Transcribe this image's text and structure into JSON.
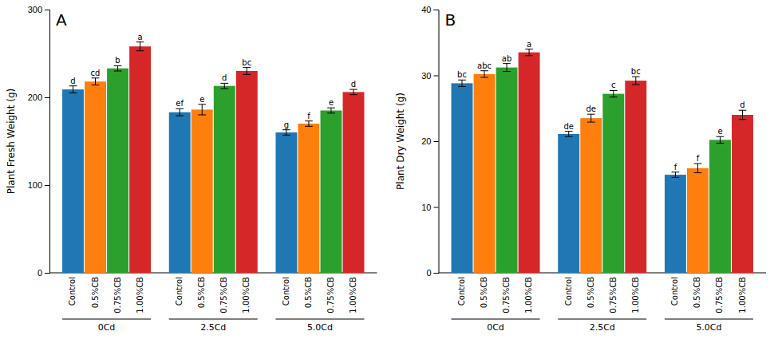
{
  "chart_data": [
    {
      "type": "bar",
      "title": "A",
      "ylabel": "Plant Fresh Weight (g)",
      "ylim": [
        0,
        300
      ],
      "yticks": [
        0,
        100,
        200,
        300
      ],
      "categories": [
        "0Cd",
        "2.5Cd",
        "5.0Cd"
      ],
      "series": [
        {
          "name": "Control",
          "values": [
            209,
            183,
            160
          ],
          "errors": [
            4,
            4,
            3
          ],
          "letters": [
            "d",
            "ef",
            "g"
          ]
        },
        {
          "name": "0.5%CB",
          "values": [
            218,
            186,
            170
          ],
          "errors": [
            4,
            6,
            3
          ],
          "letters": [
            "cd",
            "e",
            "f"
          ]
        },
        {
          "name": "0.75%CB",
          "values": [
            233,
            213,
            185
          ],
          "errors": [
            3,
            3,
            3
          ],
          "letters": [
            "b",
            "d",
            "e"
          ]
        },
        {
          "name": "1.00%CB",
          "values": [
            258,
            230,
            206
          ],
          "errors": [
            5,
            4,
            3
          ],
          "letters": [
            "a",
            "bc",
            "d"
          ]
        }
      ]
    },
    {
      "type": "bar",
      "title": "B",
      "ylabel": "Plant Dry Weight (g)",
      "ylim": [
        0,
        40
      ],
      "yticks": [
        0,
        10,
        20,
        30,
        40
      ],
      "categories": [
        "0Cd",
        "2.5Cd",
        "5.0Cd"
      ],
      "series": [
        {
          "name": "Control",
          "values": [
            28.8,
            21.1,
            14.9
          ],
          "errors": [
            0.5,
            0.4,
            0.4
          ],
          "letters": [
            "bc",
            "de",
            "f"
          ]
        },
        {
          "name": "0.5%CB",
          "values": [
            30.2,
            23.5,
            15.9
          ],
          "errors": [
            0.5,
            0.6,
            0.7
          ],
          "letters": [
            "abc",
            "de",
            "f"
          ]
        },
        {
          "name": "0.75%CB",
          "values": [
            31.2,
            27.2,
            20.2
          ],
          "errors": [
            0.6,
            0.5,
            0.5
          ],
          "letters": [
            "ab",
            "c",
            "e"
          ]
        },
        {
          "name": "1.00%CB",
          "values": [
            33.5,
            29.2,
            24.0
          ],
          "errors": [
            0.5,
            0.6,
            0.7
          ],
          "letters": [
            "a",
            "bc",
            "d"
          ]
        }
      ]
    }
  ]
}
